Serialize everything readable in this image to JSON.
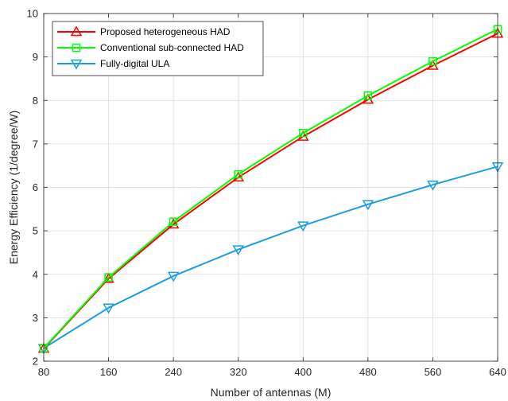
{
  "chart_data": {
    "type": "line",
    "title": "",
    "xlabel": "Number of antennas (M)",
    "ylabel": "Energy Efficiency (1/degree/W)",
    "x": [
      80,
      160,
      240,
      320,
      400,
      480,
      560,
      640
    ],
    "xlim": [
      80,
      640
    ],
    "ylim": [
      2,
      10
    ],
    "xticks": [
      "80",
      "160",
      "240",
      "320",
      "400",
      "480",
      "560",
      "640"
    ],
    "yticks": [
      "2",
      "3",
      "4",
      "5",
      "6",
      "7",
      "8",
      "9",
      "10"
    ],
    "grid": true,
    "legend_position": "top-left",
    "series": [
      {
        "name": "Proposed heterogeneous HAD",
        "color": "#ff0000",
        "marker": "triangle-up",
        "values": [
          2.29,
          3.9,
          5.15,
          6.23,
          7.17,
          8.02,
          8.8,
          9.54
        ]
      },
      {
        "name": "Conventional sub-connected HAD",
        "color": "#00ff00",
        "marker": "square",
        "values": [
          2.3,
          3.93,
          5.21,
          6.3,
          7.25,
          8.11,
          8.9,
          9.64
        ]
      },
      {
        "name": "Fully-digital ULA",
        "color": "#1a9ee6",
        "marker": "triangle-down",
        "values": [
          2.3,
          3.23,
          3.96,
          4.57,
          5.12,
          5.61,
          6.06,
          6.48
        ]
      }
    ]
  }
}
